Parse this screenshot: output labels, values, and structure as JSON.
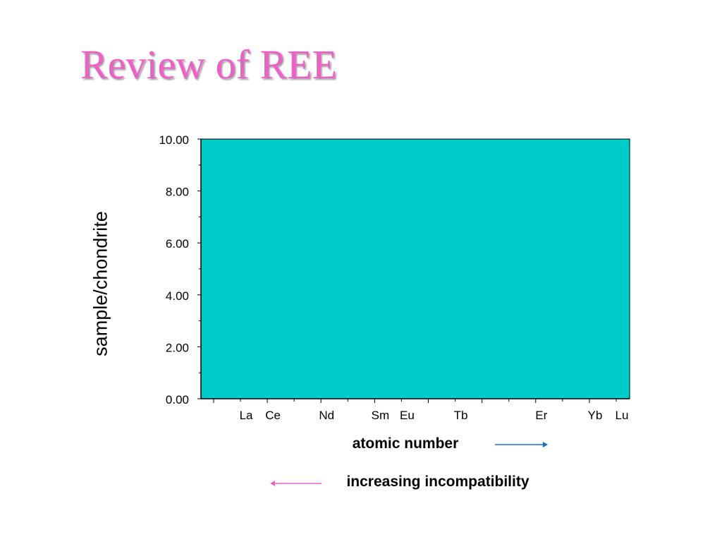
{
  "slide": {
    "title": "Review of REE"
  },
  "chart_data": {
    "type": "line",
    "title": "",
    "ylabel": "sample/chondrite",
    "xlabel": "atomic number",
    "ylim": [
      0,
      10
    ],
    "yticks": [
      "0.00",
      "2.00",
      "4.00",
      "6.00",
      "8.00",
      "10.00"
    ],
    "x_index_range": [
      0,
      15
    ],
    "categories": [
      {
        "label": "La",
        "index": 1
      },
      {
        "label": "Ce",
        "index": 2
      },
      {
        "label": "Nd",
        "index": 4
      },
      {
        "label": "Sm",
        "index": 6
      },
      {
        "label": "Eu",
        "index": 7
      },
      {
        "label": "Tb",
        "index": 9
      },
      {
        "label": "Er",
        "index": 12
      },
      {
        "label": "Yb",
        "index": 14
      },
      {
        "label": "Lu",
        "index": 15
      }
    ],
    "series": [],
    "plot_background": "#00cdca",
    "grid": false
  },
  "annotations": {
    "direction_note": "increasing incompatibility",
    "atomic_arrow_color": "#1a6fc7",
    "incompat_arrow_color": "#f05fc8"
  }
}
